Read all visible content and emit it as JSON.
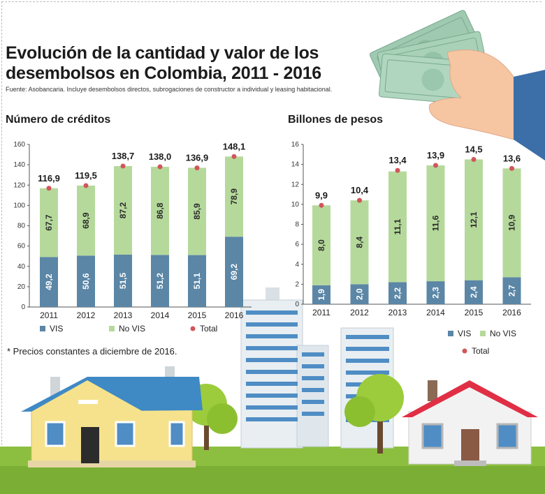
{
  "title": "Evolución de la cantidad y valor de los desembolsos en Colombia, 2011 - 2016",
  "source": "Fuente: Asobancaria. Incluye desembolsos directos, subrogaciones de constructor a individual y leasing habitacional.",
  "note": "* Precios constantes a diciembre de 2016.",
  "colors": {
    "vis": "#5b86a6",
    "novis": "#b5d99b",
    "total": "#d0565a"
  },
  "chart_data": [
    {
      "type": "bar",
      "title": "Número de créditos",
      "categories": [
        "2011",
        "2012",
        "2013",
        "2014",
        "2015",
        "2016"
      ],
      "series": [
        {
          "name": "VIS",
          "values": [
            49.2,
            50.6,
            51.5,
            51.2,
            51.1,
            69.2
          ],
          "labels": [
            "49,2",
            "50,6",
            "51,5",
            "51,2",
            "51,1",
            "69,2"
          ]
        },
        {
          "name": "No VIS",
          "values": [
            67.7,
            68.9,
            87.2,
            86.8,
            85.9,
            78.9
          ],
          "labels": [
            "67,7",
            "68,9",
            "87,2",
            "86,8",
            "85,9",
            "78,9"
          ]
        }
      ],
      "totals": {
        "name": "Total",
        "values": [
          116.9,
          119.5,
          138.7,
          138.0,
          136.9,
          148.1
        ],
        "labels": [
          "116,9",
          "119,5",
          "138,7",
          "138,0",
          "136,9",
          "148,1"
        ]
      },
      "ylim": [
        0,
        160
      ],
      "yticks": [
        0,
        20,
        40,
        60,
        80,
        100,
        120,
        140,
        160
      ],
      "stacked": true,
      "legend": "bottom"
    },
    {
      "type": "bar",
      "title": "Billones de pesos",
      "categories": [
        "2011",
        "2012",
        "2013",
        "2014",
        "2015",
        "2016"
      ],
      "series": [
        {
          "name": "VIS",
          "values": [
            1.9,
            2.0,
            2.2,
            2.3,
            2.4,
            2.7
          ],
          "labels": [
            "1,9",
            "2,0",
            "2,2",
            "2,3",
            "2,4",
            "2,7"
          ]
        },
        {
          "name": "No VIS",
          "values": [
            8.0,
            8.4,
            11.1,
            11.6,
            12.1,
            10.9
          ],
          "labels": [
            "8,0",
            "8,4",
            "11,1",
            "11,6",
            "12,1",
            "10,9"
          ]
        }
      ],
      "totals": {
        "name": "Total",
        "values": [
          9.9,
          10.4,
          13.4,
          13.9,
          14.5,
          13.6
        ],
        "labels": [
          "9,9",
          "10,4",
          "13,4",
          "13,9",
          "14,5",
          "13,6"
        ]
      },
      "ylim": [
        0,
        16
      ],
      "yticks": [
        0,
        2,
        4,
        6,
        8,
        10,
        12,
        14,
        16
      ],
      "stacked": true,
      "legend": "bottom"
    }
  ]
}
